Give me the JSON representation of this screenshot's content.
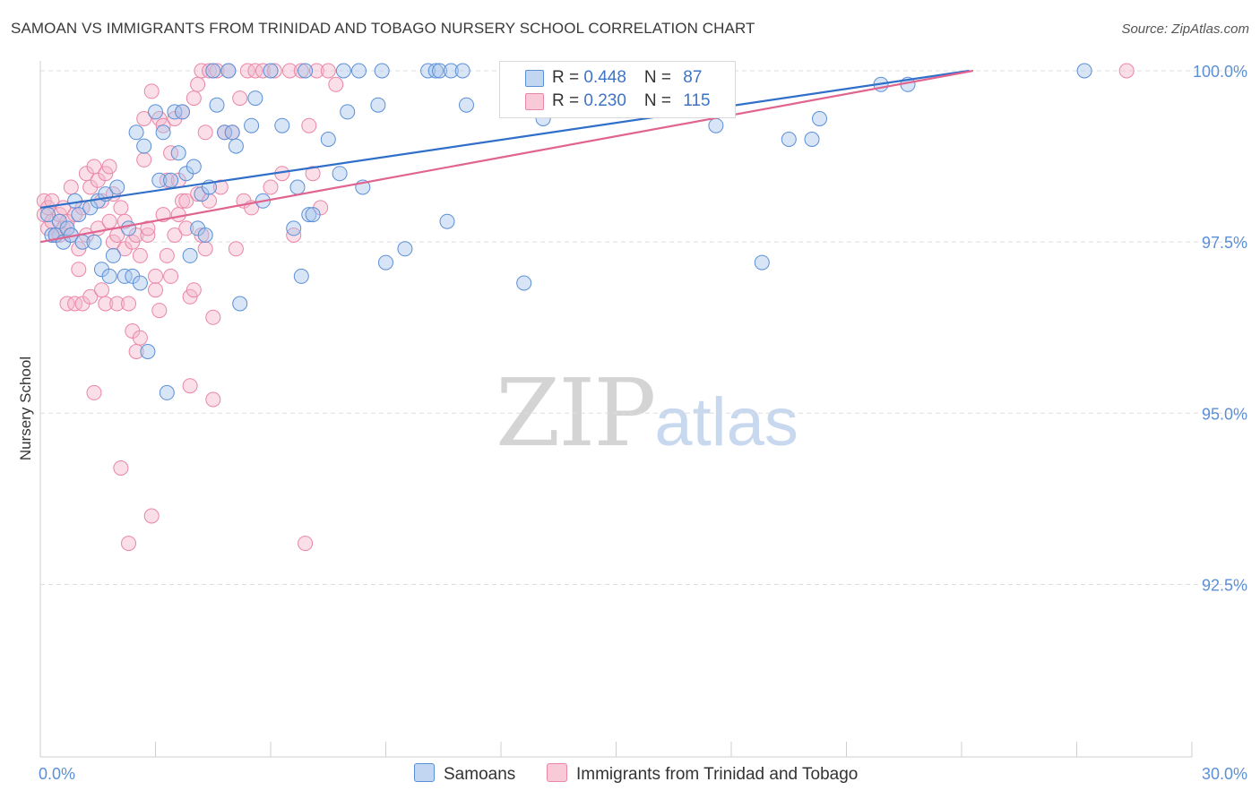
{
  "title": "SAMOAN VS IMMIGRANTS FROM TRINIDAD AND TOBAGO NURSERY SCHOOL CORRELATION CHART",
  "source": "Source: ZipAtlas.com",
  "watermark": {
    "zip": "ZIP",
    "atlas": "atlas"
  },
  "legend_top": {
    "row1": {
      "r_label": "R = ",
      "r_value": "0.448",
      "n_label": "N = ",
      "n_value": "87"
    },
    "row2": {
      "r_label": "R = ",
      "r_value": "0.230",
      "n_label": "N = ",
      "n_value": "115"
    }
  },
  "legend_bottom": {
    "s1": "Samoans",
    "s2": "Immigrants from Trinidad and Tobago"
  },
  "colors": {
    "blue_fill": "#a9c6ec",
    "blue_stroke": "#5b8fd6",
    "blue_line": "#2f6fc9",
    "pink_fill": "#f5b8cb",
    "pink_stroke": "#ea86a6",
    "pink_line": "#e0648f",
    "grid": "#dedede",
    "axis_text": "#5b8fd6"
  },
  "chart_data": {
    "type": "scatter",
    "title": "SAMOAN VS IMMIGRANTS FROM TRINIDAD AND TOBAGO NURSERY SCHOOL CORRELATION CHART",
    "xlabel": "",
    "ylabel": "Nursery School",
    "xlim": [
      0,
      30
    ],
    "ylim": [
      90.0,
      100.4
    ],
    "x_tick_labels": [
      "0.0%",
      "30.0%"
    ],
    "y_ticks": [
      92.5,
      95.0,
      97.5,
      100.0
    ],
    "y_tick_labels": [
      "92.5%",
      "95.0%",
      "97.5%",
      "100.0%"
    ],
    "grid": true,
    "series": [
      {
        "name": "Samoans",
        "R": 0.448,
        "N": 87,
        "trend": [
          [
            0.0,
            98.0
          ],
          [
            24.2,
            100.0
          ]
        ],
        "points": [
          [
            0.2,
            97.9
          ],
          [
            0.3,
            97.6
          ],
          [
            0.4,
            97.6
          ],
          [
            0.5,
            97.8
          ],
          [
            0.6,
            97.5
          ],
          [
            0.7,
            97.7
          ],
          [
            0.8,
            97.6
          ],
          [
            0.9,
            98.1
          ],
          [
            1.0,
            97.9
          ],
          [
            1.1,
            97.5
          ],
          [
            1.3,
            98.0
          ],
          [
            1.4,
            97.5
          ],
          [
            1.5,
            98.1
          ],
          [
            1.6,
            97.1
          ],
          [
            1.7,
            98.2
          ],
          [
            1.8,
            97.0
          ],
          [
            1.9,
            97.3
          ],
          [
            2.0,
            98.3
          ],
          [
            2.2,
            97.0
          ],
          [
            2.3,
            97.7
          ],
          [
            2.4,
            97.0
          ],
          [
            2.5,
            99.1
          ],
          [
            2.6,
            96.9
          ],
          [
            2.7,
            98.9
          ],
          [
            2.8,
            95.9
          ],
          [
            3.0,
            99.4
          ],
          [
            3.1,
            98.4
          ],
          [
            3.2,
            99.1
          ],
          [
            3.3,
            95.3
          ],
          [
            3.4,
            98.4
          ],
          [
            3.5,
            99.4
          ],
          [
            3.6,
            98.8
          ],
          [
            3.7,
            99.4
          ],
          [
            3.8,
            98.5
          ],
          [
            3.9,
            97.3
          ],
          [
            4.0,
            98.6
          ],
          [
            4.1,
            97.7
          ],
          [
            4.2,
            98.2
          ],
          [
            4.3,
            97.6
          ],
          [
            4.4,
            98.3
          ],
          [
            4.5,
            100.0
          ],
          [
            4.6,
            99.5
          ],
          [
            4.8,
            99.1
          ],
          [
            4.9,
            100.0
          ],
          [
            5.0,
            99.1
          ],
          [
            5.1,
            98.9
          ],
          [
            5.2,
            96.6
          ],
          [
            5.5,
            99.2
          ],
          [
            5.6,
            99.6
          ],
          [
            5.8,
            98.1
          ],
          [
            6.0,
            100.0
          ],
          [
            6.3,
            99.2
          ],
          [
            6.6,
            97.7
          ],
          [
            6.7,
            98.3
          ],
          [
            6.8,
            97.0
          ],
          [
            6.9,
            100.0
          ],
          [
            7.0,
            97.9
          ],
          [
            7.1,
            97.9
          ],
          [
            7.5,
            99.0
          ],
          [
            7.8,
            98.5
          ],
          [
            7.9,
            100.0
          ],
          [
            8.0,
            99.4
          ],
          [
            8.3,
            100.0
          ],
          [
            8.4,
            98.3
          ],
          [
            8.8,
            99.5
          ],
          [
            8.9,
            100.0
          ],
          [
            9.0,
            97.2
          ],
          [
            9.5,
            97.4
          ],
          [
            10.1,
            100.0
          ],
          [
            10.3,
            100.0
          ],
          [
            10.4,
            100.0
          ],
          [
            10.6,
            97.8
          ],
          [
            10.7,
            100.0
          ],
          [
            11.0,
            100.0
          ],
          [
            11.1,
            99.5
          ],
          [
            12.2,
            100.0
          ],
          [
            12.6,
            96.9
          ],
          [
            13.1,
            99.3
          ],
          [
            14.6,
            100.0
          ],
          [
            16.5,
            100.0
          ],
          [
            17.6,
            99.2
          ],
          [
            18.8,
            97.2
          ],
          [
            19.5,
            99.0
          ],
          [
            20.1,
            99.0
          ],
          [
            20.3,
            99.3
          ],
          [
            21.9,
            99.8
          ],
          [
            22.6,
            99.8
          ],
          [
            27.2,
            100.0
          ]
        ]
      },
      {
        "name": "Immigrants from Trinidad and Tobago",
        "R": 0.23,
        "N": 115,
        "trend": [
          [
            0.0,
            97.5
          ],
          [
            24.3,
            100.0
          ]
        ],
        "points": [
          [
            0.1,
            98.1
          ],
          [
            0.1,
            97.9
          ],
          [
            0.2,
            98.0
          ],
          [
            0.2,
            97.7
          ],
          [
            0.3,
            97.8
          ],
          [
            0.3,
            98.1
          ],
          [
            0.4,
            97.6
          ],
          [
            0.5,
            97.9
          ],
          [
            0.5,
            97.6
          ],
          [
            0.6,
            98.0
          ],
          [
            0.6,
            97.7
          ],
          [
            0.7,
            97.8
          ],
          [
            0.7,
            96.6
          ],
          [
            0.8,
            97.6
          ],
          [
            0.8,
            98.3
          ],
          [
            0.9,
            97.9
          ],
          [
            0.9,
            96.6
          ],
          [
            1.0,
            97.4
          ],
          [
            1.0,
            97.1
          ],
          [
            1.1,
            96.6
          ],
          [
            1.1,
            98.0
          ],
          [
            1.2,
            98.5
          ],
          [
            1.2,
            97.6
          ],
          [
            1.3,
            98.3
          ],
          [
            1.3,
            96.7
          ],
          [
            1.4,
            98.6
          ],
          [
            1.4,
            95.3
          ],
          [
            1.5,
            98.4
          ],
          [
            1.5,
            97.7
          ],
          [
            1.6,
            98.1
          ],
          [
            1.6,
            96.8
          ],
          [
            1.7,
            96.6
          ],
          [
            1.7,
            98.5
          ],
          [
            1.8,
            97.8
          ],
          [
            1.8,
            98.6
          ],
          [
            1.9,
            98.2
          ],
          [
            1.9,
            97.5
          ],
          [
            2.0,
            97.6
          ],
          [
            2.0,
            96.6
          ],
          [
            2.1,
            94.2
          ],
          [
            2.1,
            98.0
          ],
          [
            2.2,
            97.8
          ],
          [
            2.2,
            97.4
          ],
          [
            2.3,
            96.6
          ],
          [
            2.3,
            93.1
          ],
          [
            2.4,
            97.5
          ],
          [
            2.4,
            96.2
          ],
          [
            2.5,
            97.6
          ],
          [
            2.5,
            95.9
          ],
          [
            2.6,
            97.3
          ],
          [
            2.6,
            96.1
          ],
          [
            2.7,
            98.7
          ],
          [
            2.7,
            99.3
          ],
          [
            2.8,
            97.6
          ],
          [
            2.8,
            97.7
          ],
          [
            2.9,
            93.5
          ],
          [
            2.9,
            99.7
          ],
          [
            3.0,
            97.0
          ],
          [
            3.0,
            96.8
          ],
          [
            3.1,
            99.3
          ],
          [
            3.1,
            96.5
          ],
          [
            3.2,
            97.9
          ],
          [
            3.2,
            99.2
          ],
          [
            3.3,
            98.4
          ],
          [
            3.3,
            97.3
          ],
          [
            3.4,
            98.8
          ],
          [
            3.4,
            97.0
          ],
          [
            3.5,
            97.6
          ],
          [
            3.5,
            99.3
          ],
          [
            3.6,
            97.9
          ],
          [
            3.6,
            98.4
          ],
          [
            3.7,
            99.4
          ],
          [
            3.7,
            98.1
          ],
          [
            3.8,
            97.7
          ],
          [
            3.8,
            98.1
          ],
          [
            3.9,
            96.7
          ],
          [
            3.9,
            95.4
          ],
          [
            4.0,
            99.6
          ],
          [
            4.0,
            96.8
          ],
          [
            4.1,
            98.2
          ],
          [
            4.1,
            99.8
          ],
          [
            4.2,
            97.6
          ],
          [
            4.2,
            100.0
          ],
          [
            4.3,
            99.1
          ],
          [
            4.3,
            97.4
          ],
          [
            4.4,
            100.0
          ],
          [
            4.4,
            98.1
          ],
          [
            4.5,
            96.4
          ],
          [
            4.5,
            95.2
          ],
          [
            4.6,
            100.0
          ],
          [
            4.7,
            98.3
          ],
          [
            4.8,
            99.1
          ],
          [
            4.9,
            100.0
          ],
          [
            5.0,
            99.1
          ],
          [
            5.1,
            97.4
          ],
          [
            5.2,
            99.6
          ],
          [
            5.3,
            98.1
          ],
          [
            5.4,
            100.0
          ],
          [
            5.5,
            98.0
          ],
          [
            5.6,
            100.0
          ],
          [
            5.8,
            100.0
          ],
          [
            6.0,
            98.3
          ],
          [
            6.1,
            100.0
          ],
          [
            6.3,
            98.5
          ],
          [
            6.5,
            100.0
          ],
          [
            6.6,
            97.6
          ],
          [
            6.8,
            100.0
          ],
          [
            6.9,
            93.1
          ],
          [
            7.0,
            99.2
          ],
          [
            7.1,
            98.5
          ],
          [
            7.2,
            100.0
          ],
          [
            7.3,
            98.0
          ],
          [
            7.5,
            100.0
          ],
          [
            7.7,
            99.8
          ],
          [
            28.3,
            100.0
          ]
        ]
      }
    ]
  },
  "y_axis_label": "Nursery School"
}
